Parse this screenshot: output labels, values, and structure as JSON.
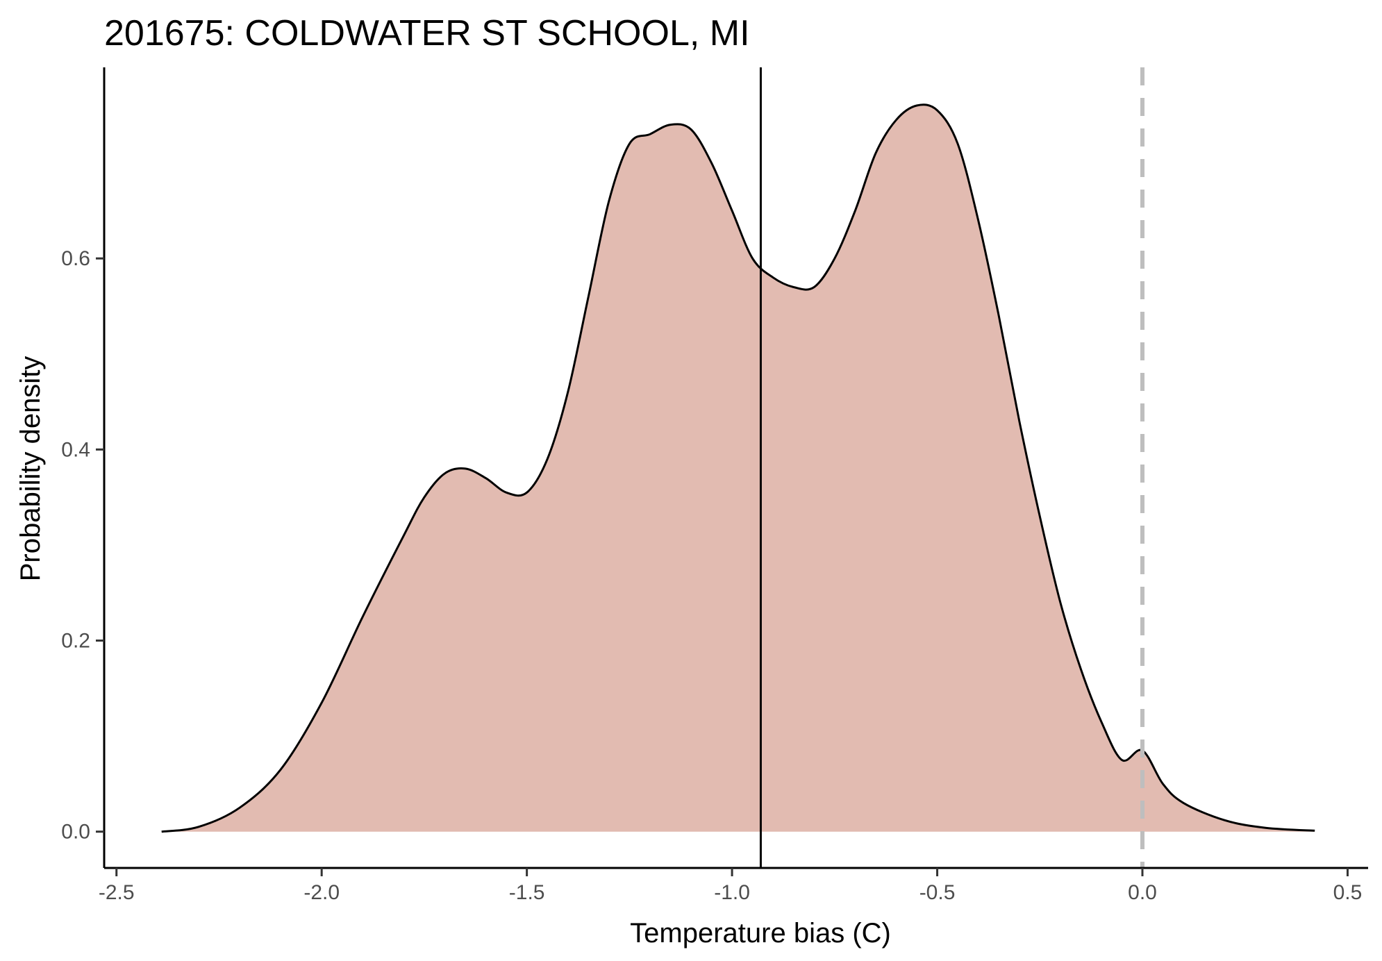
{
  "chart_data": {
    "type": "area",
    "title": "201675: COLDWATER ST SCHOOL, MI",
    "xlabel": "Temperature bias (C)",
    "ylabel": "Probability density",
    "xlim": [
      -2.53,
      0.55
    ],
    "ylim": [
      -0.038,
      0.8
    ],
    "x_ticks": [
      -2.5,
      -2.0,
      -1.5,
      -1.0,
      -0.5,
      0.0,
      0.5
    ],
    "x_tick_labels": [
      "-2.5",
      "-2.0",
      "-1.5",
      "-1.0",
      "-0.5",
      "0.0",
      "0.5"
    ],
    "y_ticks": [
      0.0,
      0.2,
      0.4,
      0.6
    ],
    "y_tick_labels": [
      "0.0",
      "0.2",
      "0.4",
      "0.6"
    ],
    "grid": false,
    "legend": "none",
    "fill_color": "#e2bbb1",
    "line_color": "#000000",
    "reference_lines": [
      {
        "x": -0.93,
        "style": "solid",
        "color": "#000000"
      },
      {
        "x": 0.0,
        "style": "dashed",
        "color": "#bebebe"
      }
    ],
    "series": [
      {
        "x": [
          -2.39,
          -2.3,
          -2.2,
          -2.1,
          -2.0,
          -1.9,
          -1.8,
          -1.75,
          -1.7,
          -1.65,
          -1.6,
          -1.55,
          -1.5,
          -1.45,
          -1.4,
          -1.35,
          -1.3,
          -1.25,
          -1.2,
          -1.15,
          -1.1,
          -1.05,
          -1.0,
          -0.95,
          -0.9,
          -0.85,
          -0.8,
          -0.75,
          -0.7,
          -0.65,
          -0.6,
          -0.55,
          -0.5,
          -0.45,
          -0.4,
          -0.35,
          -0.3,
          -0.25,
          -0.2,
          -0.15,
          -0.1,
          -0.05,
          0.0,
          0.05,
          0.1,
          0.2,
          0.3,
          0.42
        ],
        "y": [
          0.0,
          0.005,
          0.025,
          0.065,
          0.135,
          0.225,
          0.31,
          0.35,
          0.375,
          0.38,
          0.37,
          0.355,
          0.355,
          0.39,
          0.46,
          0.56,
          0.66,
          0.72,
          0.73,
          0.74,
          0.735,
          0.7,
          0.65,
          0.6,
          0.58,
          0.57,
          0.57,
          0.6,
          0.65,
          0.71,
          0.745,
          0.76,
          0.755,
          0.72,
          0.64,
          0.54,
          0.43,
          0.33,
          0.24,
          0.17,
          0.115,
          0.075,
          0.085,
          0.05,
          0.03,
          0.012,
          0.004,
          0.001
        ]
      }
    ]
  }
}
